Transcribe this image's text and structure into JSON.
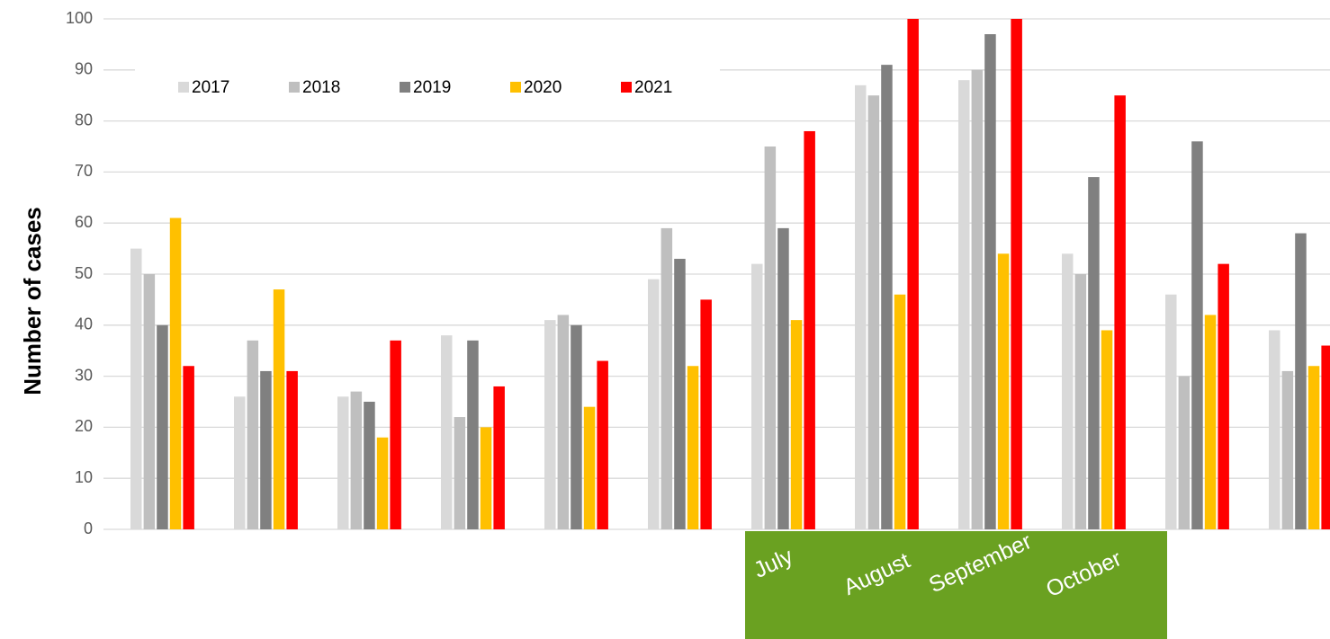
{
  "chart_data": {
    "type": "bar",
    "y_label": "Number of cases",
    "categories": [
      null,
      null,
      null,
      null,
      null,
      null,
      "July",
      "August",
      "September",
      "October",
      null,
      null
    ],
    "series": [
      {
        "name": "2017",
        "color": "#d9d9d9",
        "values": [
          55,
          26,
          26,
          38,
          41,
          49,
          52,
          87,
          88,
          54,
          46,
          39
        ]
      },
      {
        "name": "2018",
        "color": "#bfbfbf",
        "values": [
          50,
          37,
          27,
          22,
          42,
          59,
          75,
          85,
          90,
          50,
          30,
          31
        ]
      },
      {
        "name": "2019",
        "color": "#808080",
        "values": [
          40,
          31,
          25,
          37,
          40,
          53,
          59,
          91,
          97,
          69,
          76,
          58
        ]
      },
      {
        "name": "2020",
        "color": "#ffc000",
        "values": [
          61,
          47,
          18,
          20,
          24,
          32,
          41,
          46,
          54,
          39,
          42,
          32
        ]
      },
      {
        "name": "2021",
        "color": "#ff0000",
        "values": [
          32,
          31,
          37,
          28,
          33,
          45,
          78,
          100,
          100,
          85,
          52,
          36
        ]
      }
    ],
    "ylim": [
      0,
      100
    ],
    "yticks": [
      0,
      10,
      20,
      30,
      40,
      50,
      60,
      70,
      80,
      90,
      100
    ],
    "grid": true,
    "legend": "top-left",
    "highlight_color": "#6aa121"
  }
}
